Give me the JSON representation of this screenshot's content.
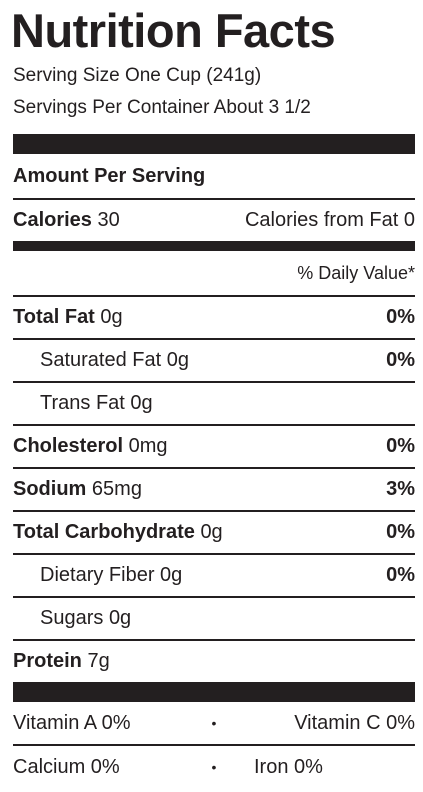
{
  "title": "Nutrition Facts",
  "serving_size": "Serving Size One Cup (241g)",
  "servings_per_container": "Servings Per Container About 3 1/2",
  "amount_per_serving": "Amount Per Serving",
  "calories": {
    "label": "Calories",
    "value": "30",
    "from_fat": "Calories from Fat 0"
  },
  "daily_value_header": "% Daily Value*",
  "nutrients": [
    {
      "label": "Total Fat",
      "amount": "0g",
      "dv": "0%"
    },
    {
      "label": "Saturated Fat",
      "amount": "0g",
      "dv": "0%"
    },
    {
      "label": "Trans Fat",
      "amount": "0g",
      "dv": ""
    },
    {
      "label": "Cholesterol",
      "amount": "0mg",
      "dv": "0%"
    },
    {
      "label": "Sodium",
      "amount": "65mg",
      "dv": "3%"
    },
    {
      "label": "Total Carbohydrate",
      "amount": "0g",
      "dv": "0%"
    },
    {
      "label": "Dietary Fiber",
      "amount": "0g",
      "dv": "0%"
    },
    {
      "label": "Sugars",
      "amount": "0g",
      "dv": ""
    },
    {
      "label": "Protein",
      "amount": "7g",
      "dv": ""
    }
  ],
  "vitamins": [
    {
      "left": "Vitamin A 0%",
      "separator": "•",
      "right": "Vitamin C 0%"
    },
    {
      "left": "Calcium 0%",
      "separator": "•",
      "right": "Iron 0%"
    }
  ]
}
